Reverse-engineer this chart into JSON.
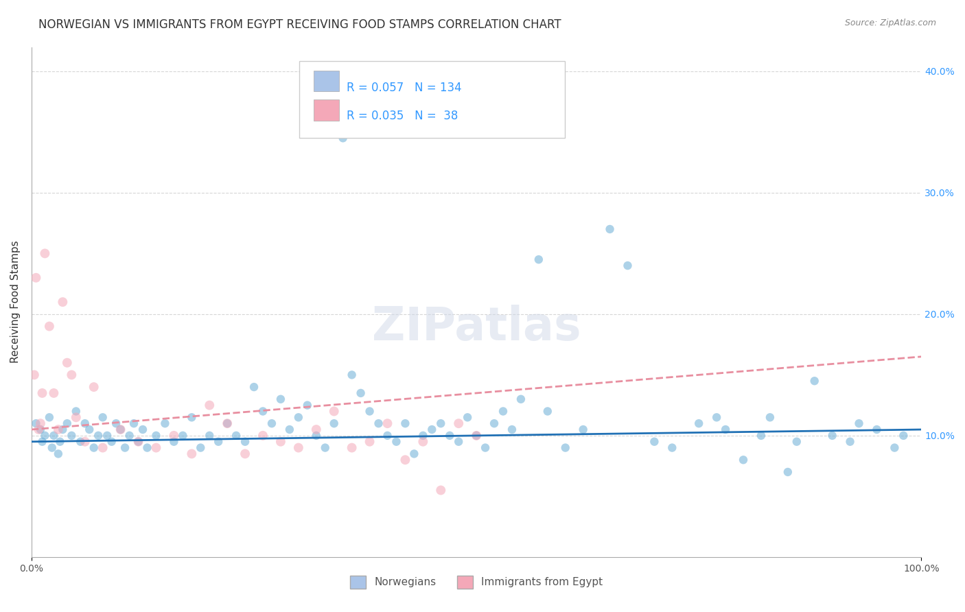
{
  "title": "NORWEGIAN VS IMMIGRANTS FROM EGYPT RECEIVING FOOD STAMPS CORRELATION CHART",
  "source": "Source: ZipAtlas.com",
  "ylabel": "Receiving Food Stamps",
  "xlabel": "",
  "xlim": [
    0,
    100
  ],
  "ylim": [
    0,
    42
  ],
  "x_tick_labels": [
    "0.0%",
    "100.0%"
  ],
  "y_tick_labels": [
    "10.0%",
    "20.0%",
    "30.0%",
    "40.0%"
  ],
  "y_tick_values": [
    10,
    20,
    30,
    40
  ],
  "watermark": "ZIPatlas",
  "legend_entries": [
    {
      "label": "Norwegians",
      "color": "#aac4e8",
      "R": "0.057",
      "N": "134"
    },
    {
      "label": "Immigrants from Egypt",
      "color": "#f4a8b8",
      "R": "0.035",
      "N": "38"
    }
  ],
  "blue_scatter_x": [
    0.5,
    1.0,
    1.2,
    1.5,
    2.0,
    2.3,
    2.5,
    3.0,
    3.2,
    3.5,
    4.0,
    4.5,
    5.0,
    5.5,
    6.0,
    6.5,
    7.0,
    7.5,
    8.0,
    8.5,
    9.0,
    9.5,
    10.0,
    10.5,
    11.0,
    11.5,
    12.0,
    12.5,
    13.0,
    14.0,
    15.0,
    16.0,
    17.0,
    18.0,
    19.0,
    20.0,
    21.0,
    22.0,
    23.0,
    24.0,
    25.0,
    26.0,
    27.0,
    28.0,
    29.0,
    30.0,
    31.0,
    32.0,
    33.0,
    34.0,
    35.0,
    36.0,
    37.0,
    38.0,
    39.0,
    40.0,
    41.0,
    42.0,
    43.0,
    44.0,
    45.0,
    46.0,
    47.0,
    48.0,
    49.0,
    50.0,
    51.0,
    52.0,
    53.0,
    54.0,
    55.0,
    57.0,
    58.0,
    60.0,
    62.0,
    65.0,
    67.0,
    70.0,
    72.0,
    75.0,
    77.0,
    78.0,
    80.0,
    82.0,
    83.0,
    85.0,
    86.0,
    88.0,
    90.0,
    92.0,
    93.0,
    95.0,
    97.0,
    98.0
  ],
  "blue_scatter_y": [
    11.0,
    10.5,
    9.5,
    10.0,
    11.5,
    9.0,
    10.0,
    8.5,
    9.5,
    10.5,
    11.0,
    10.0,
    12.0,
    9.5,
    11.0,
    10.5,
    9.0,
    10.0,
    11.5,
    10.0,
    9.5,
    11.0,
    10.5,
    9.0,
    10.0,
    11.0,
    9.5,
    10.5,
    9.0,
    10.0,
    11.0,
    9.5,
    10.0,
    11.5,
    9.0,
    10.0,
    9.5,
    11.0,
    10.0,
    9.5,
    14.0,
    12.0,
    11.0,
    13.0,
    10.5,
    11.5,
    12.5,
    10.0,
    9.0,
    11.0,
    34.5,
    15.0,
    13.5,
    12.0,
    11.0,
    10.0,
    9.5,
    11.0,
    8.5,
    10.0,
    10.5,
    11.0,
    10.0,
    9.5,
    11.5,
    10.0,
    9.0,
    11.0,
    12.0,
    10.5,
    13.0,
    24.5,
    12.0,
    9.0,
    10.5,
    27.0,
    24.0,
    9.5,
    9.0,
    11.0,
    11.5,
    10.5,
    8.0,
    10.0,
    11.5,
    7.0,
    9.5,
    14.5,
    10.0,
    9.5,
    11.0,
    10.5,
    9.0,
    10.0
  ],
  "pink_scatter_x": [
    0.3,
    0.5,
    0.8,
    1.0,
    1.2,
    1.5,
    2.0,
    2.5,
    3.0,
    3.5,
    4.0,
    4.5,
    5.0,
    6.0,
    7.0,
    8.0,
    10.0,
    12.0,
    14.0,
    16.0,
    18.0,
    20.0,
    22.0,
    24.0,
    26.0,
    28.0,
    30.0,
    32.0,
    34.0,
    36.0,
    38.0,
    40.0,
    42.0,
    44.0,
    46.0,
    48.0,
    50.0
  ],
  "pink_scatter_y": [
    15.0,
    23.0,
    10.5,
    11.0,
    13.5,
    25.0,
    19.0,
    13.5,
    10.5,
    21.0,
    16.0,
    15.0,
    11.5,
    9.5,
    14.0,
    9.0,
    10.5,
    9.5,
    9.0,
    10.0,
    8.5,
    12.5,
    11.0,
    8.5,
    10.0,
    9.5,
    9.0,
    10.5,
    12.0,
    9.0,
    9.5,
    11.0,
    8.0,
    9.5,
    5.5,
    11.0,
    10.0
  ],
  "blue_line_x": [
    0,
    100
  ],
  "blue_line_y": [
    9.5,
    10.5
  ],
  "pink_line_x": [
    0,
    100
  ],
  "pink_line_y": [
    10.5,
    16.5
  ],
  "scatter_size_blue": 80,
  "scatter_size_pink": 100,
  "scatter_alpha": 0.55,
  "bg_color": "#ffffff",
  "grid_color": "#cccccc",
  "blue_color": "#6baed6",
  "pink_color": "#f4a8b8",
  "blue_line_color": "#2171b5",
  "pink_line_color": "#e88fa0",
  "title_fontsize": 12,
  "axis_label_fontsize": 11,
  "tick_fontsize": 10,
  "source_fontsize": 9,
  "watermark_color": "#d0d8e8",
  "watermark_fontsize": 48
}
